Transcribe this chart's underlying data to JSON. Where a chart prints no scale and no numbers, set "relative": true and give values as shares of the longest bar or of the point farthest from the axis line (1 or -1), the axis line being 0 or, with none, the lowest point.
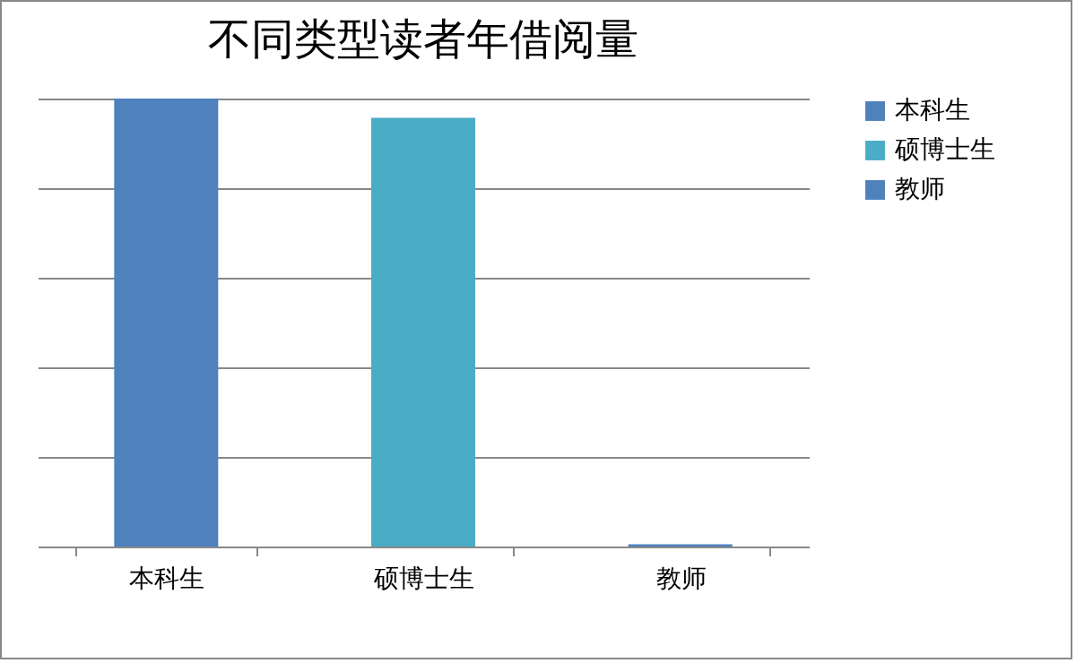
{
  "chart_data": {
    "type": "bar",
    "title": "不同类型读者年借阅量",
    "categories": [
      "本科生",
      "硕博士生",
      "教师"
    ],
    "series": [
      {
        "name": "本科生",
        "color": "#4f81bd",
        "values": [
          1,
          null,
          null
        ]
      },
      {
        "name": "硕博士生",
        "color": "#4bacc6",
        "values": [
          null,
          0.957,
          null
        ]
      },
      {
        "name": "教师",
        "color": "#4f81bd",
        "values": [
          null,
          null,
          0.005
        ]
      }
    ],
    "relative": true,
    "grid": "y",
    "legend": "right"
  }
}
